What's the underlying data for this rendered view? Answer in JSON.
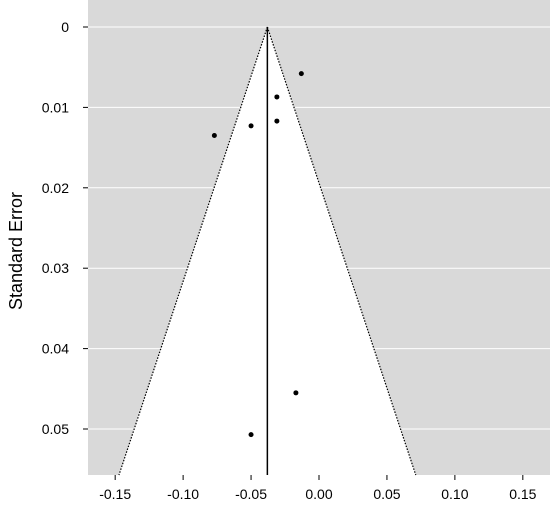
{
  "chart_data": {
    "type": "scatter",
    "subtype": "funnel-plot",
    "title": "",
    "xlabel": "",
    "ylabel": "Standard Error",
    "xlim": [
      -0.17,
      0.17
    ],
    "ylim": [
      0,
      0.0555
    ],
    "y_reversed": true,
    "x_ticks": [
      -0.15,
      -0.1,
      -0.05,
      0.0,
      0.05,
      0.1,
      0.15
    ],
    "x_tick_labels": [
      "-0.15",
      "-0.10",
      "-0.05",
      "0.00",
      "0.05",
      "0.10",
      "0.15"
    ],
    "y_ticks": [
      0,
      0.01,
      0.02,
      0.03,
      0.04,
      0.05
    ],
    "y_tick_labels": [
      "0",
      "0.01",
      "0.02",
      "0.03",
      "0.04",
      "0.05"
    ],
    "pooled_estimate": -0.038,
    "ci_multiplier": 1.96,
    "grid": true,
    "colors": {
      "panel_background": "#d9d9d9",
      "funnel_fill": "#ffffff",
      "gridline": "#ffffff",
      "points": "#000000",
      "center_line": "#000000",
      "funnel_edge": "#000000"
    },
    "points": [
      {
        "x": -0.013,
        "y": 0.0058
      },
      {
        "x": -0.031,
        "y": 0.0087
      },
      {
        "x": -0.031,
        "y": 0.0117
      },
      {
        "x": -0.05,
        "y": 0.0123
      },
      {
        "x": -0.077,
        "y": 0.0135
      },
      {
        "x": -0.017,
        "y": 0.0455
      },
      {
        "x": -0.05,
        "y": 0.0507
      }
    ]
  }
}
